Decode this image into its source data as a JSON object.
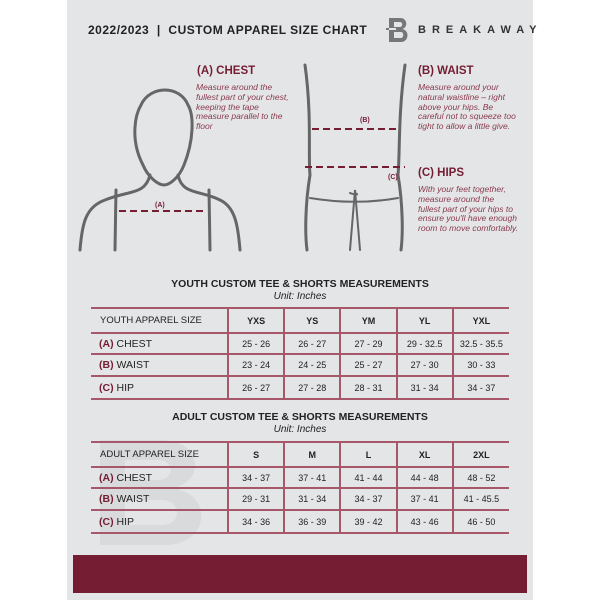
{
  "header": {
    "title": "2022/2023  |  CUSTOM APPAREL SIZE CHART",
    "brand": "BREAKAWAY",
    "logo_letter": "B"
  },
  "sections": {
    "chest": {
      "heading": "(A) CHEST",
      "text": "Measure around the fullest part of your chest, keeping the tape measure parallel to the floor",
      "marker": "(A)"
    },
    "waist": {
      "heading": "(B) WAIST",
      "text": "Measure around your natural waistline – right above your hips. Be careful not to squeeze too tight to allow a little give.",
      "marker": "(B)"
    },
    "hips": {
      "heading": "(C) HIPS",
      "text": "With your feet together, measure around the fullest part of your hips to ensure you'll have enough room to move comfortably.",
      "marker": "(C)"
    }
  },
  "youth": {
    "title": "YOUTH CUSTOM TEE & SHORTS MEASUREMENTS",
    "unit": "Unit: Inches",
    "header": [
      "YOUTH APPAREL SIZE",
      "YXS",
      "YS",
      "YM",
      "YL",
      "YXL"
    ],
    "rows": [
      {
        "tag": "(A)",
        "label": "CHEST",
        "values": [
          "25 - 26",
          "26 - 27",
          "27 - 29",
          "29 - 32.5",
          "32.5 - 35.5"
        ]
      },
      {
        "tag": "(B)",
        "label": "WAIST",
        "values": [
          "23 - 24",
          "24 - 25",
          "25 - 27",
          "27 - 30",
          "30 - 33"
        ]
      },
      {
        "tag": "(C)",
        "label": "HIP",
        "values": [
          "26 - 27",
          "27 - 28",
          "28 - 31",
          "31 - 34",
          "34 - 37"
        ]
      }
    ]
  },
  "adult": {
    "title": "ADULT CUSTOM TEE & SHORTS MEASUREMENTS",
    "unit": "Unit: Inches",
    "header": [
      "ADULT APPAREL SIZE",
      "S",
      "M",
      "L",
      "XL",
      "2XL"
    ],
    "rows": [
      {
        "tag": "(A)",
        "label": "CHEST",
        "values": [
          "34 - 37",
          "37 - 41",
          "41 - 44",
          "44 - 48",
          "48 - 52"
        ]
      },
      {
        "tag": "(B)",
        "label": "WAIST",
        "values": [
          "29 - 31",
          "31 - 34",
          "34 - 37",
          "37 - 41",
          "41 - 45.5"
        ]
      },
      {
        "tag": "(C)",
        "label": "HIP",
        "values": [
          "34 - 36",
          "36 - 39",
          "39 - 42",
          "43 - 46",
          "46 - 50"
        ]
      }
    ]
  },
  "colors": {
    "accent": "#741d33",
    "panel": "#e4e5e7"
  }
}
